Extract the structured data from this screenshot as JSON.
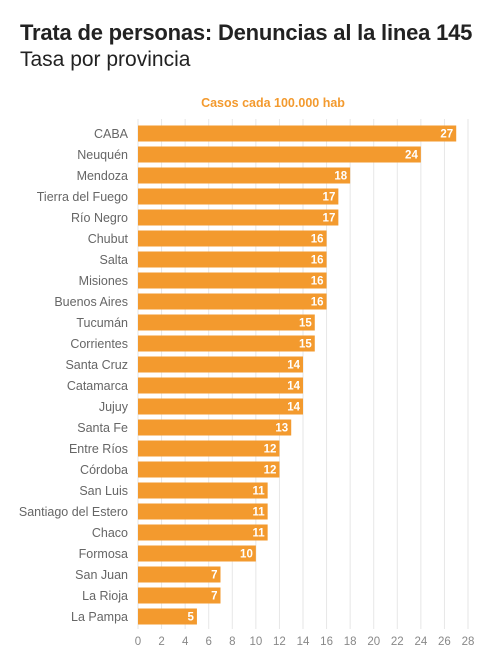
{
  "title": "Trata de personas: Denuncias al la linea 145",
  "subtitle": "Tasa por provincia",
  "colors": {
    "bar": "#F39A2E",
    "axis_title": "#F39A2E",
    "grid": "#E6E6E6"
  },
  "chart_data": {
    "type": "bar",
    "orientation": "horizontal",
    "axis_title": "Casos cada 100.000 hab",
    "categories": [
      "CABA",
      "Neuquén",
      "Mendoza",
      "Tierra del Fuego",
      "Río Negro",
      "Chubut",
      "Salta",
      "Misiones",
      "Buenos Aires",
      "Tucumán",
      "Corrientes",
      "Santa Cruz",
      "Catamarca",
      "Jujuy",
      "Santa Fe",
      "Entre Ríos",
      "Córdoba",
      "San Luis",
      "Santiago del Estero",
      "Chaco",
      "Formosa",
      "San Juan",
      "La Rioja",
      "La Pampa"
    ],
    "values": [
      27,
      24,
      18,
      17,
      17,
      16,
      16,
      16,
      16,
      15,
      15,
      14,
      14,
      14,
      13,
      12,
      12,
      11,
      11,
      11,
      10,
      7,
      7,
      5
    ],
    "xlim": [
      0,
      28
    ],
    "xticks": [
      0,
      2,
      4,
      6,
      8,
      10,
      12,
      14,
      16,
      18,
      20,
      22,
      24,
      26,
      28
    ],
    "grid": true
  }
}
